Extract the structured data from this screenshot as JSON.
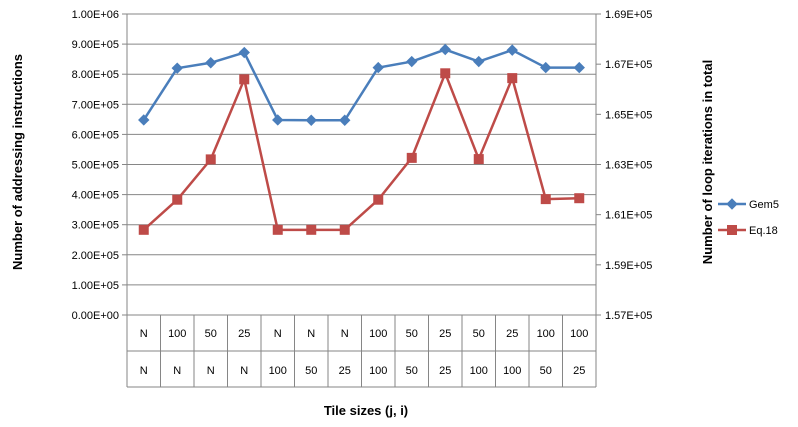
{
  "chart_data": {
    "type": "line",
    "title": "",
    "xlabel": "Tile sizes (j, i)",
    "ylabel_left": "Number of addressing instructions",
    "ylabel_right": "Number of loop iterations in total",
    "categories_row1": [
      "N",
      "100",
      "50",
      "25",
      "N",
      "N",
      "N",
      "100",
      "50",
      "25",
      "50",
      "25",
      "100",
      "100"
    ],
    "categories_row2": [
      "N",
      "N",
      "N",
      "N",
      "100",
      "50",
      "25",
      "100",
      "50",
      "25",
      "100",
      "100",
      "50",
      "25"
    ],
    "y_left": {
      "min": 0,
      "max": 1000000,
      "step": 100000,
      "ticks": [
        "0.00E+00",
        "1.00E+05",
        "2.00E+05",
        "3.00E+05",
        "4.00E+05",
        "5.00E+05",
        "6.00E+05",
        "7.00E+05",
        "8.00E+05",
        "9.00E+05",
        "1.00E+06"
      ]
    },
    "y_right": {
      "min": 157000,
      "max": 169000,
      "step": 2000,
      "ticks": [
        "1.57E+05",
        "1.59E+05",
        "1.61E+05",
        "1.63E+05",
        "1.65E+05",
        "1.67E+05",
        "1.69E+05"
      ]
    },
    "grid": true,
    "legend_position": "right",
    "series": [
      {
        "name": "Gem5",
        "axis": "left",
        "color": "#4a7ebb",
        "marker": "diamond",
        "values": [
          648000,
          820000,
          838000,
          872000,
          648000,
          647000,
          647000,
          822000,
          842000,
          882000,
          842000,
          880000,
          822000,
          822000
        ]
      },
      {
        "name": "Eq.18",
        "axis": "left",
        "color": "#be4b48",
        "marker": "square",
        "values": [
          283000,
          383000,
          517000,
          783000,
          283000,
          283000,
          283000,
          383000,
          522000,
          803000,
          518000,
          787000,
          385000,
          388000
        ]
      }
    ]
  }
}
